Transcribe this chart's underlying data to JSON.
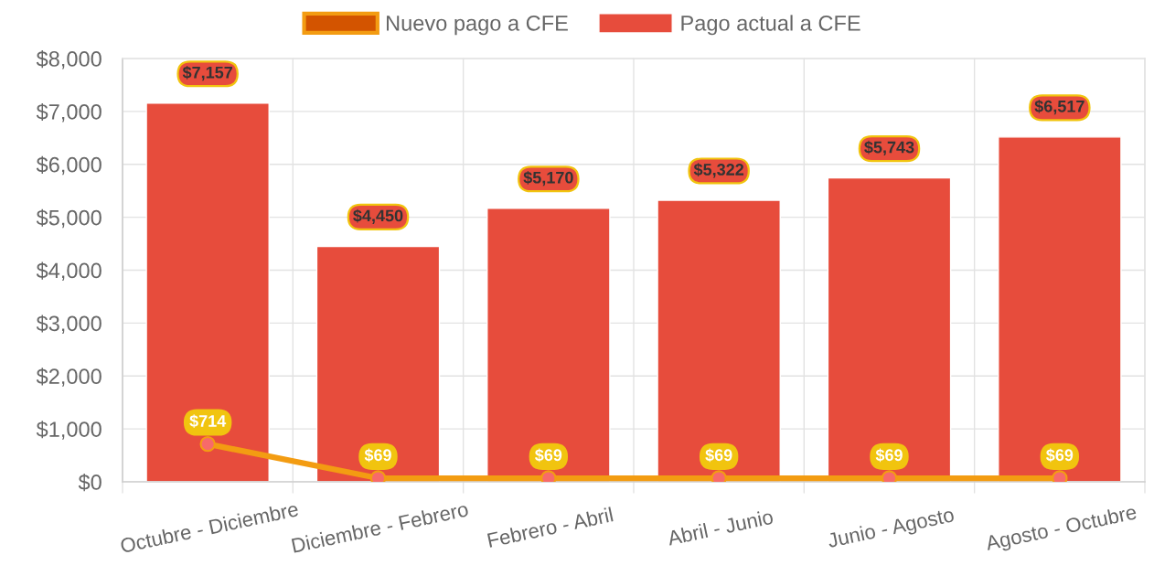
{
  "chart_data": {
    "type": "bar",
    "categories": [
      "Octubre - Diciembre",
      "Diciembre - Febrero",
      "Febrero - Abril",
      "Abril - Junio",
      "Junio - Agosto",
      "Agosto - Octubre"
    ],
    "series": [
      {
        "name": "Nuevo pago a CFE",
        "type": "line",
        "color": "#f39c12",
        "values": [
          714,
          69,
          69,
          69,
          69,
          69
        ],
        "value_labels": [
          "$714",
          "$69",
          "$69",
          "$69",
          "$69",
          "$69"
        ]
      },
      {
        "name": "Pago actual a CFE",
        "color": "#e74c3c",
        "values": [
          7157,
          4450,
          5170,
          5322,
          5743,
          6517
        ],
        "value_labels": [
          "$7,157",
          "$4,450",
          "$5,170",
          "$5,322",
          "$5,743",
          "$6,517"
        ]
      }
    ],
    "ylim": [
      0,
      8000
    ],
    "yticks": [
      {
        "value": 0,
        "label": "$0"
      },
      {
        "value": 1000,
        "label": "$1,000"
      },
      {
        "value": 2000,
        "label": "$2,000"
      },
      {
        "value": 3000,
        "label": "$3,000"
      },
      {
        "value": 4000,
        "label": "$4,000"
      },
      {
        "value": 5000,
        "label": "$5,000"
      },
      {
        "value": 6000,
        "label": "$6,000"
      },
      {
        "value": 7000,
        "label": "$7,000"
      },
      {
        "value": 8000,
        "label": "$8,000"
      }
    ],
    "grid": true,
    "legend": "top",
    "marker": "circle"
  }
}
